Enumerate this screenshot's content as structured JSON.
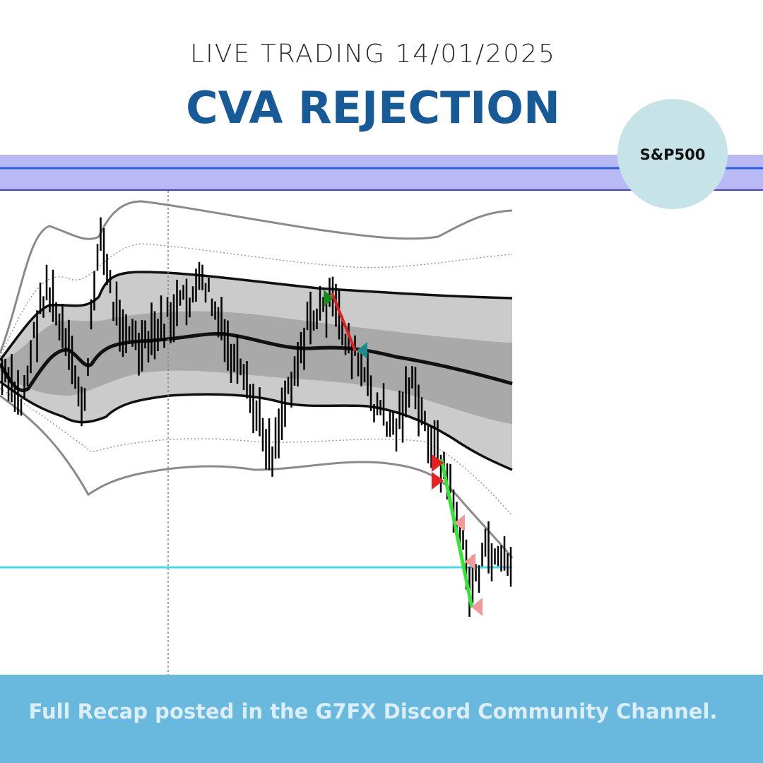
{
  "header": {
    "subtitle": "LIVE TRADING 14/01/2025",
    "title": "CVA REJECTION"
  },
  "badge": "S&P500",
  "footer": "Full Recap posted in the G7FX Discord Community Channel."
}
